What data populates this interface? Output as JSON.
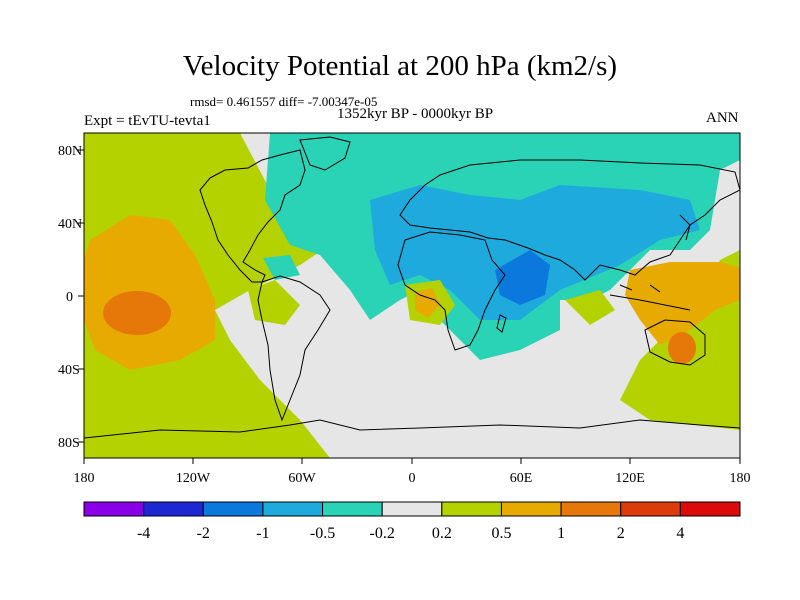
{
  "figure": {
    "title": "Velocity Potential at 200 hPa (km2/s)",
    "stats": "rmsd= 0.461557 diff= -7.00347e-05",
    "period": "1352kyr BP - 0000kyr BP",
    "experiment": "Expt = tEvTU-tevta1",
    "season": "ANN"
  },
  "map": {
    "projection": "cylindrical-equidistant",
    "lon_range": [
      -180,
      180
    ],
    "lat_range": [
      -90,
      90
    ],
    "x_tick_labels": [
      "180",
      "120W",
      "60W",
      "0",
      "60E",
      "120E",
      "180"
    ],
    "y_tick_labels": [
      "80N",
      "40N",
      "0",
      "40S",
      "80S"
    ],
    "coastlines": true
  },
  "colorbar": {
    "levels": [
      "-4",
      "-2",
      "-1",
      "-0.5",
      "-0.2",
      "0.2",
      "0.5",
      "1",
      "2",
      "4"
    ],
    "colors": [
      "#8a00e6",
      "#1e28d2",
      "#0a78dc",
      "#1eaadc",
      "#2ad2b6",
      "#e6e6e6",
      "#b4d200",
      "#e6aa00",
      "#e6780a",
      "#dc3c0a",
      "#dc0a0a"
    ]
  }
}
